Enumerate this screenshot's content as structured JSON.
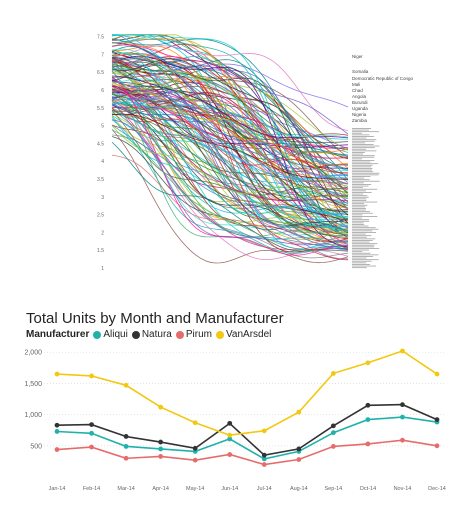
{
  "top_chart": {
    "ytick_labels": [
      "7.5",
      "7",
      "6.5",
      "6",
      "5.5",
      "5",
      "4.5",
      "4",
      "3.5",
      "3",
      "2.5",
      "2",
      "1.5",
      "1"
    ],
    "visible_labels": [
      "Niger",
      "Somalia",
      "Democratic Republic of Congo",
      "Mali",
      "Chad",
      "Angola",
      "Burundi",
      "Uganda",
      "Nigeria",
      "Zambia"
    ]
  },
  "chart_data": [
    {
      "type": "line",
      "title": "",
      "yticks": [
        1,
        1.5,
        2,
        2.5,
        3,
        3.5,
        4,
        4.5,
        5,
        5.5,
        6,
        6.5,
        7,
        7.5
      ],
      "ylim": [
        1,
        7.6
      ],
      "series_count": 160,
      "legend": "none",
      "grid": false
    },
    {
      "type": "line",
      "title": "Total Units by Month and Manufacturer",
      "legend_title": "Manufacturer",
      "legend_position": "top-left",
      "categories": [
        "Jan-14",
        "Feb-14",
        "Mar-14",
        "Apr-14",
        "May-14",
        "Jun-14",
        "Jul-14",
        "Aug-14",
        "Sep-14",
        "Oct-14",
        "Nov-14",
        "Dec-14"
      ],
      "ylim": [
        0,
        2100
      ],
      "yticks": [
        500,
        1000,
        1500,
        2000
      ],
      "ytick_labels": [
        "500",
        "1,000",
        "1,500",
        "2,000"
      ],
      "grid": true,
      "series": [
        {
          "name": "Aliqui",
          "color": "#20b2aa",
          "values": [
            730,
            700,
            490,
            450,
            410,
            610,
            290,
            410,
            710,
            920,
            960,
            880
          ]
        },
        {
          "name": "Natura",
          "color": "#333333",
          "values": [
            830,
            840,
            650,
            560,
            460,
            860,
            350,
            450,
            820,
            1150,
            1160,
            920
          ]
        },
        {
          "name": "Pirum",
          "color": "#e66c6c",
          "values": [
            440,
            480,
            300,
            330,
            270,
            360,
            200,
            280,
            490,
            530,
            590,
            500
          ]
        },
        {
          "name": "VanArsdel",
          "color": "#f2c811",
          "values": [
            1650,
            1620,
            1470,
            1120,
            870,
            670,
            740,
            1040,
            1660,
            1830,
            2020,
            1650
          ]
        }
      ]
    }
  ]
}
